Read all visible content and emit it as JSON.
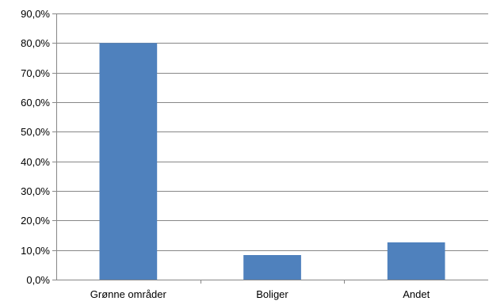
{
  "chart_data": {
    "type": "bar",
    "categories": [
      "Grønne områder",
      "Boliger",
      "Andet"
    ],
    "values": [
      80.0,
      8.3,
      12.6
    ],
    "ylim": [
      0,
      90
    ],
    "y_tick_step": 10,
    "y_tick_labels": [
      "0,0%",
      "10,0%",
      "20,0%",
      "30,0%",
      "40,0%",
      "50,0%",
      "60,0%",
      "70,0%",
      "80,0%",
      "90,0%"
    ],
    "grid": true,
    "legend": "none",
    "bar_color": "#4f81bd"
  }
}
